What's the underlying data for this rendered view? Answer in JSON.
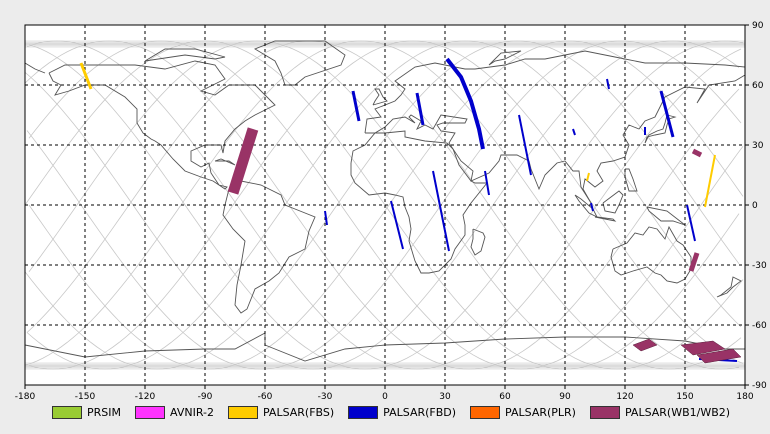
{
  "map": {
    "axes": {
      "x_ticks": [
        "-180",
        "-150",
        "-120",
        "-90",
        "-60",
        "-30",
        "0",
        "30",
        "60",
        "90",
        "120",
        "150",
        "180"
      ],
      "y_ticks": [
        "90",
        "60",
        "30",
        "0",
        "-30",
        "-60",
        "-90"
      ],
      "x_range": [
        -180,
        180
      ],
      "y_range": [
        -90,
        90
      ],
      "grid": true,
      "grid_style": "dashed"
    },
    "colors": {
      "PRSIM": "#99cc33",
      "AVNIR-2": "#ff33ff",
      "PALSAR(FBS)": "#ffcc00",
      "PALSAR(FBD)": "#0000cc",
      "PALSAR(PLR)": "#ff6600",
      "PALSAR(WB1/WB2)": "#993366"
    },
    "legend": [
      {
        "label": "PRSIM",
        "key": "PRSIM"
      },
      {
        "label": "AVNIR-2",
        "key": "AVNIR-2"
      },
      {
        "label": "PALSAR(FBS)",
        "key": "PALSAR(FBS)"
      },
      {
        "label": "PALSAR(FBD)",
        "key": "PALSAR(FBD)"
      },
      {
        "label": "PALSAR(PLR)",
        "key": "PALSAR(PLR)"
      },
      {
        "label": "PALSAR(WB1/WB2)",
        "key": "PALSAR(WB1/WB2)"
      }
    ],
    "observations": [
      {
        "mode": "PALSAR(FBS)",
        "path": [
          [
            -152,
            71
          ],
          [
            -147,
            58
          ]
        ],
        "width": 3
      },
      {
        "mode": "PALSAR(WB1/WB2)",
        "path": [
          [
            -66,
            38
          ],
          [
            -76,
            6
          ]
        ],
        "width": 11
      },
      {
        "mode": "PALSAR(FBD)",
        "path": [
          [
            -30,
            -3
          ],
          [
            -29,
            -10
          ]
        ],
        "width": 2
      },
      {
        "mode": "PALSAR(FBD)",
        "path": [
          [
            -16,
            57
          ],
          [
            -13,
            42
          ]
        ],
        "width": 3
      },
      {
        "mode": "PALSAR(FBD)",
        "path": [
          [
            16,
            56
          ],
          [
            19,
            40
          ]
        ],
        "width": 3
      },
      {
        "mode": "PALSAR(FBD)",
        "path": [
          [
            31,
            73
          ],
          [
            38,
            64
          ],
          [
            43,
            52
          ],
          [
            47,
            38
          ],
          [
            49,
            28
          ]
        ],
        "width": 4
      },
      {
        "mode": "PALSAR(FBD)",
        "path": [
          [
            50,
            17
          ],
          [
            52,
            5
          ]
        ],
        "width": 2
      },
      {
        "mode": "PALSAR(FBD)",
        "path": [
          [
            67,
            45
          ],
          [
            73,
            15
          ]
        ],
        "width": 2
      },
      {
        "mode": "PALSAR(FBD)",
        "path": [
          [
            3,
            2
          ],
          [
            9,
            -22
          ]
        ],
        "width": 2
      },
      {
        "mode": "PALSAR(FBD)",
        "path": [
          [
            24,
            17
          ],
          [
            32,
            -23
          ]
        ],
        "width": 2
      },
      {
        "mode": "PALSAR(FBD)",
        "path": [
          [
            94,
            38
          ],
          [
            95,
            35
          ]
        ],
        "width": 2
      },
      {
        "mode": "PALSAR(FBD)",
        "path": [
          [
            111,
            63
          ],
          [
            112,
            58
          ]
        ],
        "width": 2
      },
      {
        "mode": "PALSAR(FBD)",
        "path": [
          [
            130,
            39
          ],
          [
            130,
            35
          ]
        ],
        "width": 2
      },
      {
        "mode": "PALSAR(FBD)",
        "path": [
          [
            138,
            57
          ],
          [
            144,
            34
          ]
        ],
        "width": 3
      },
      {
        "mode": "PALSAR(FBD)",
        "path": [
          [
            151,
            0
          ],
          [
            155,
            -18
          ]
        ],
        "width": 2
      },
      {
        "mode": "PALSAR(FBS)",
        "path": [
          [
            165,
            25
          ],
          [
            160,
            -1
          ]
        ],
        "width": 2
      },
      {
        "mode": "PALSAR(FBS)",
        "path": [
          [
            102,
            16
          ],
          [
            101,
            12
          ]
        ],
        "width": 2
      },
      {
        "mode": "PALSAR(WB1/WB2)",
        "path": [
          [
            154,
            27
          ],
          [
            158,
            25
          ]
        ],
        "width": 5
      },
      {
        "mode": "PALSAR(WB1/WB2)",
        "path": [
          [
            156,
            -24
          ],
          [
            153,
            -33
          ]
        ],
        "width": 5
      },
      {
        "mode": "PALSAR(FBD)",
        "path": [
          [
            103,
            1
          ],
          [
            104,
            -3
          ]
        ],
        "width": 2
      },
      {
        "mode": "PALSAR(FBD)",
        "path": [
          [
            157,
            -77
          ],
          [
            176,
            -78
          ]
        ],
        "width": 2
      }
    ],
    "antarctic_patches": [
      {
        "mode": "PALSAR(WB1/WB2)",
        "poly": [
          [
            124,
            -70
          ],
          [
            132,
            -67
          ],
          [
            136,
            -70
          ],
          [
            128,
            -73
          ]
        ]
      },
      {
        "mode": "PALSAR(WB1/WB2)",
        "poly": [
          [
            148,
            -70
          ],
          [
            164,
            -68
          ],
          [
            170,
            -72
          ],
          [
            154,
            -75
          ]
        ]
      },
      {
        "mode": "PALSAR(WB1/WB2)",
        "poly": [
          [
            156,
            -75
          ],
          [
            174,
            -72
          ],
          [
            178,
            -76
          ],
          [
            160,
            -79
          ]
        ]
      }
    ]
  }
}
